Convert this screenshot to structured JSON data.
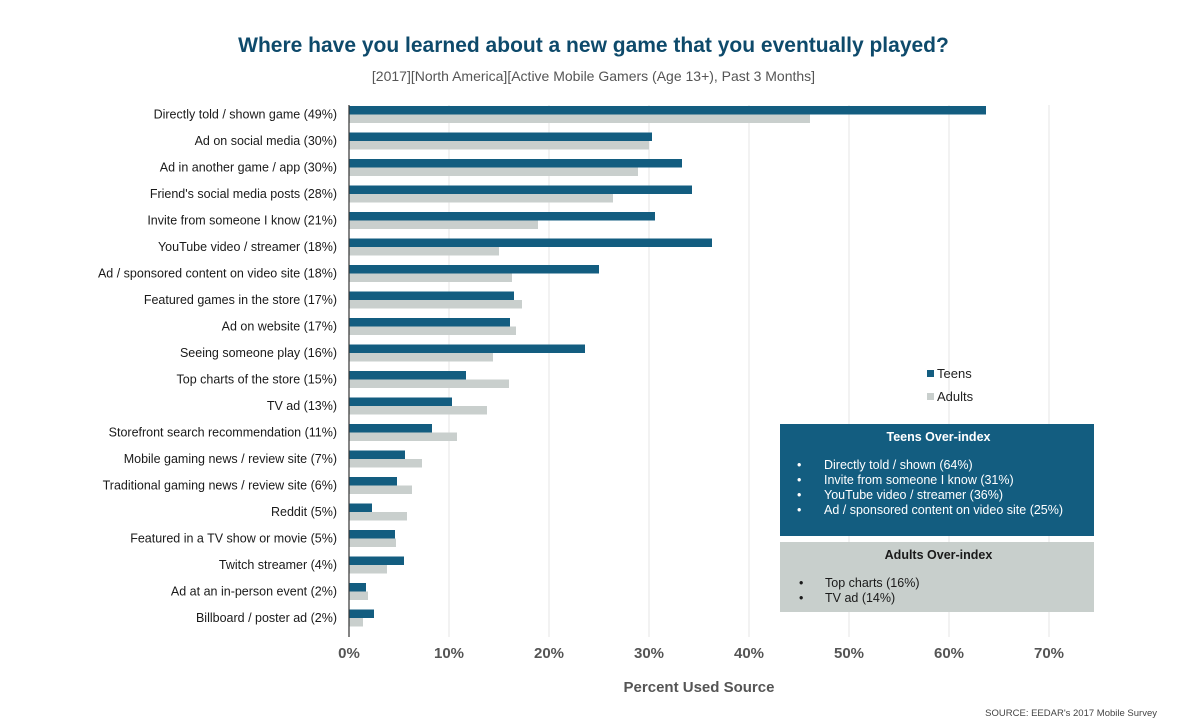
{
  "title": "Where have you learned about a new game that you eventually played?",
  "subtitle": "[2017][North America][Active Mobile Gamers (Age 13+), Past 3 Months]",
  "source": "SOURCE: EEDAR's 2017 Mobile Survey",
  "legend": {
    "teens": "Teens",
    "adults": "Adults"
  },
  "colors": {
    "teens": "#135d80",
    "adults": "#c9cfcd",
    "axis": "#333333",
    "grid": "#e6e6e6"
  },
  "teens_box": {
    "title": "Teens Over-index",
    "items": [
      "Directly told / shown (64%)",
      "Invite from someone I know (31%)",
      "YouTube video / streamer (36%)",
      "Ad / sponsored content on video site (25%)"
    ]
  },
  "adults_box": {
    "title": "Adults Over-index",
    "items": [
      "Top charts (16%)",
      "TV ad (14%)"
    ]
  },
  "chart_data": {
    "type": "bar",
    "orientation": "horizontal",
    "categories": [
      "Directly told / shown game (49%)",
      "Ad on social media (30%)",
      "Ad in another game / app (30%)",
      "Friend's social media posts (28%)",
      "Invite from someone I know (21%)",
      "YouTube video / streamer (18%)",
      "Ad / sponsored content on video site (18%)",
      "Featured games in the store (17%)",
      "Ad on website (17%)",
      "Seeing someone play (16%)",
      "Top charts of the store (15%)",
      "TV ad (13%)",
      "Storefront search recommendation (11%)",
      "Mobile gaming news / review site (7%)",
      "Traditional gaming news / review site (6%)",
      "Reddit (5%)",
      "Featured in a TV show or movie (5%)",
      "Twitch streamer (4%)",
      "Ad at an in-person event (2%)",
      "Billboard / poster ad (2%)"
    ],
    "series": [
      {
        "name": "Teens",
        "values": [
          63.7,
          30.3,
          33.3,
          34.3,
          30.6,
          36.3,
          25.0,
          16.5,
          16.1,
          23.6,
          11.7,
          10.3,
          8.3,
          5.6,
          4.8,
          2.3,
          4.6,
          5.5,
          1.7,
          2.5
        ]
      },
      {
        "name": "Adults",
        "values": [
          46.1,
          30.0,
          28.9,
          26.4,
          18.9,
          15.0,
          16.3,
          17.3,
          16.7,
          14.4,
          16.0,
          13.8,
          10.8,
          7.3,
          6.3,
          5.8,
          4.7,
          3.8,
          1.9,
          1.4
        ]
      }
    ],
    "xlabel": "Percent Used Source",
    "ylabel": "",
    "xlim": [
      0,
      70
    ],
    "ticks": [
      "0%",
      "10%",
      "20%",
      "30%",
      "40%",
      "50%",
      "60%",
      "70%"
    ],
    "grid": true,
    "legend_position": "right"
  }
}
